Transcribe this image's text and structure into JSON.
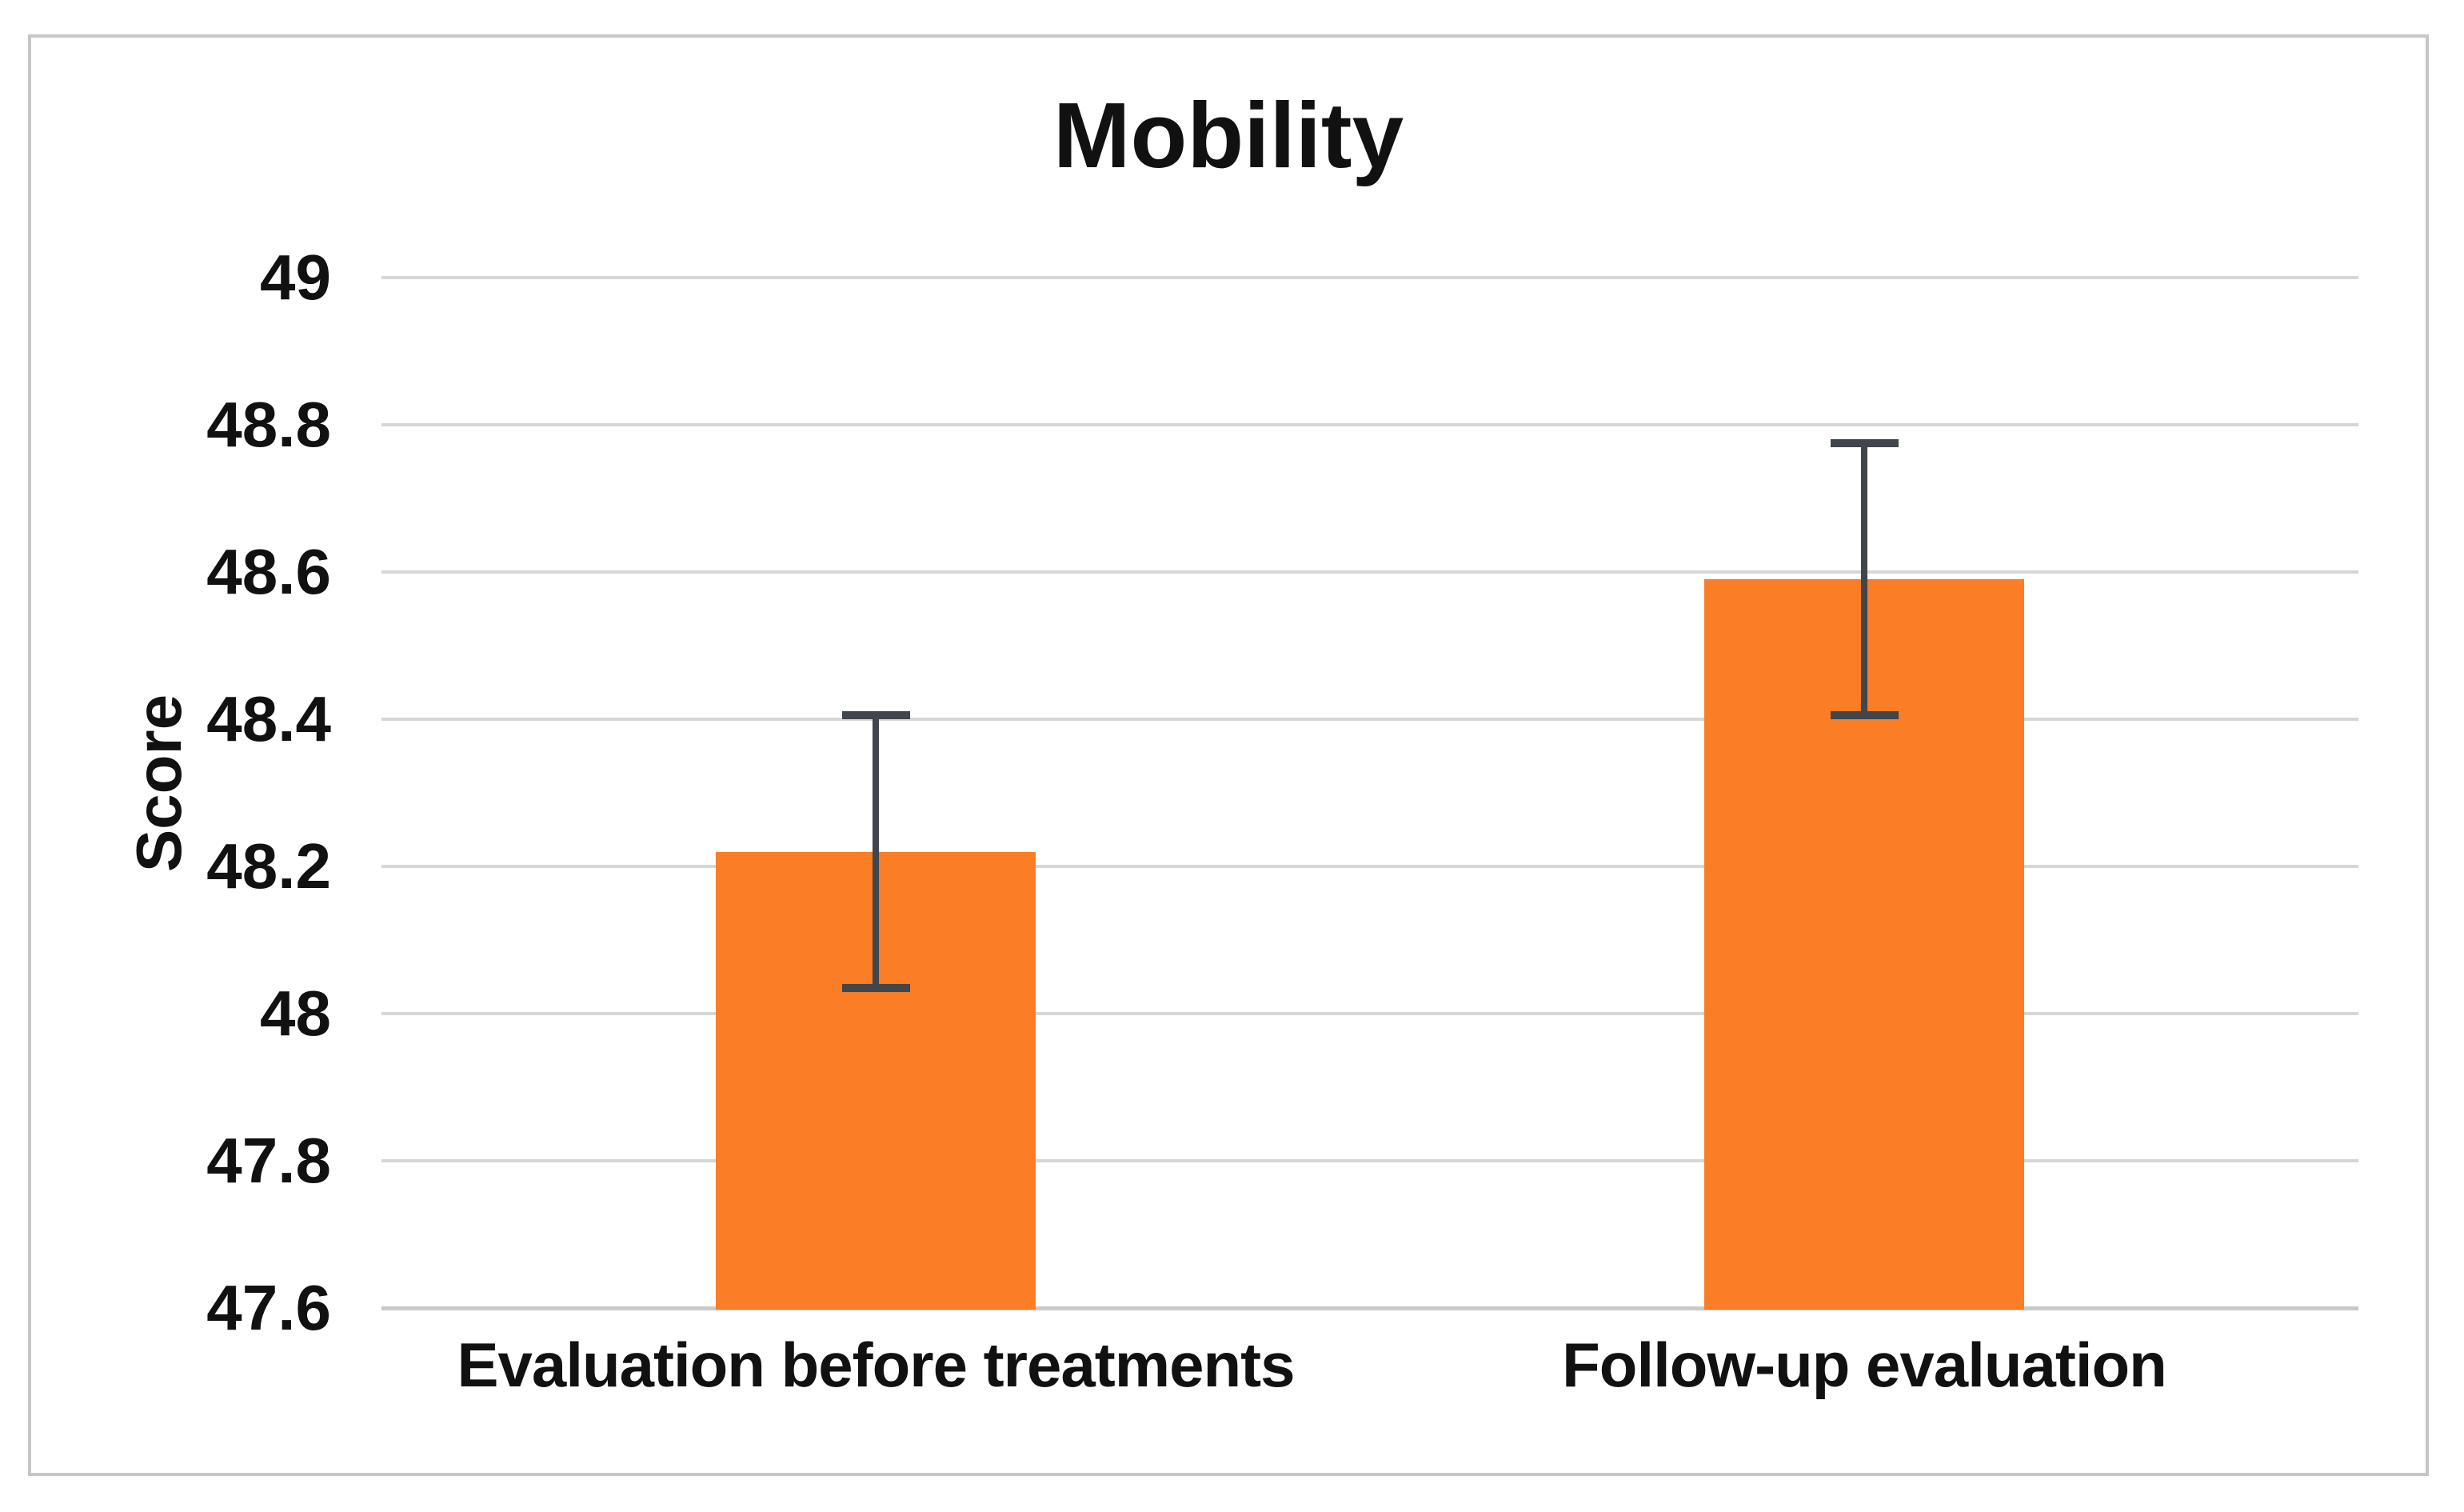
{
  "figure": {
    "title": "Mobility"
  },
  "chart_data": {
    "type": "bar",
    "title": "Mobility",
    "xlabel": "",
    "ylabel": "Score",
    "categories": [
      "Evaluation before treatments",
      "Follow-up evaluation"
    ],
    "values": [
      48.22,
      48.59
    ],
    "error_bars": [
      0.185,
      0.185
    ],
    "series": [
      {
        "name": "Score",
        "values": [
          48.22,
          48.59
        ],
        "error_low": [
          48.035,
          48.405
        ],
        "error_high": [
          48.405,
          48.775
        ]
      }
    ],
    "ylim": [
      47.6,
      49
    ],
    "ytick_step": 0.2,
    "yticks": [
      49,
      48.8,
      48.6,
      48.4,
      48.2,
      48,
      47.8,
      47.6
    ],
    "grid": true,
    "legend": "none",
    "colors": {
      "bar": "#FB7D26",
      "error_bar": "#41454C",
      "gridline": "#D6D6D6",
      "axis_line": "#C9C9C9",
      "text": "#111111",
      "figure_border": "#C6C6C6",
      "background": "#FFFFFF"
    }
  }
}
